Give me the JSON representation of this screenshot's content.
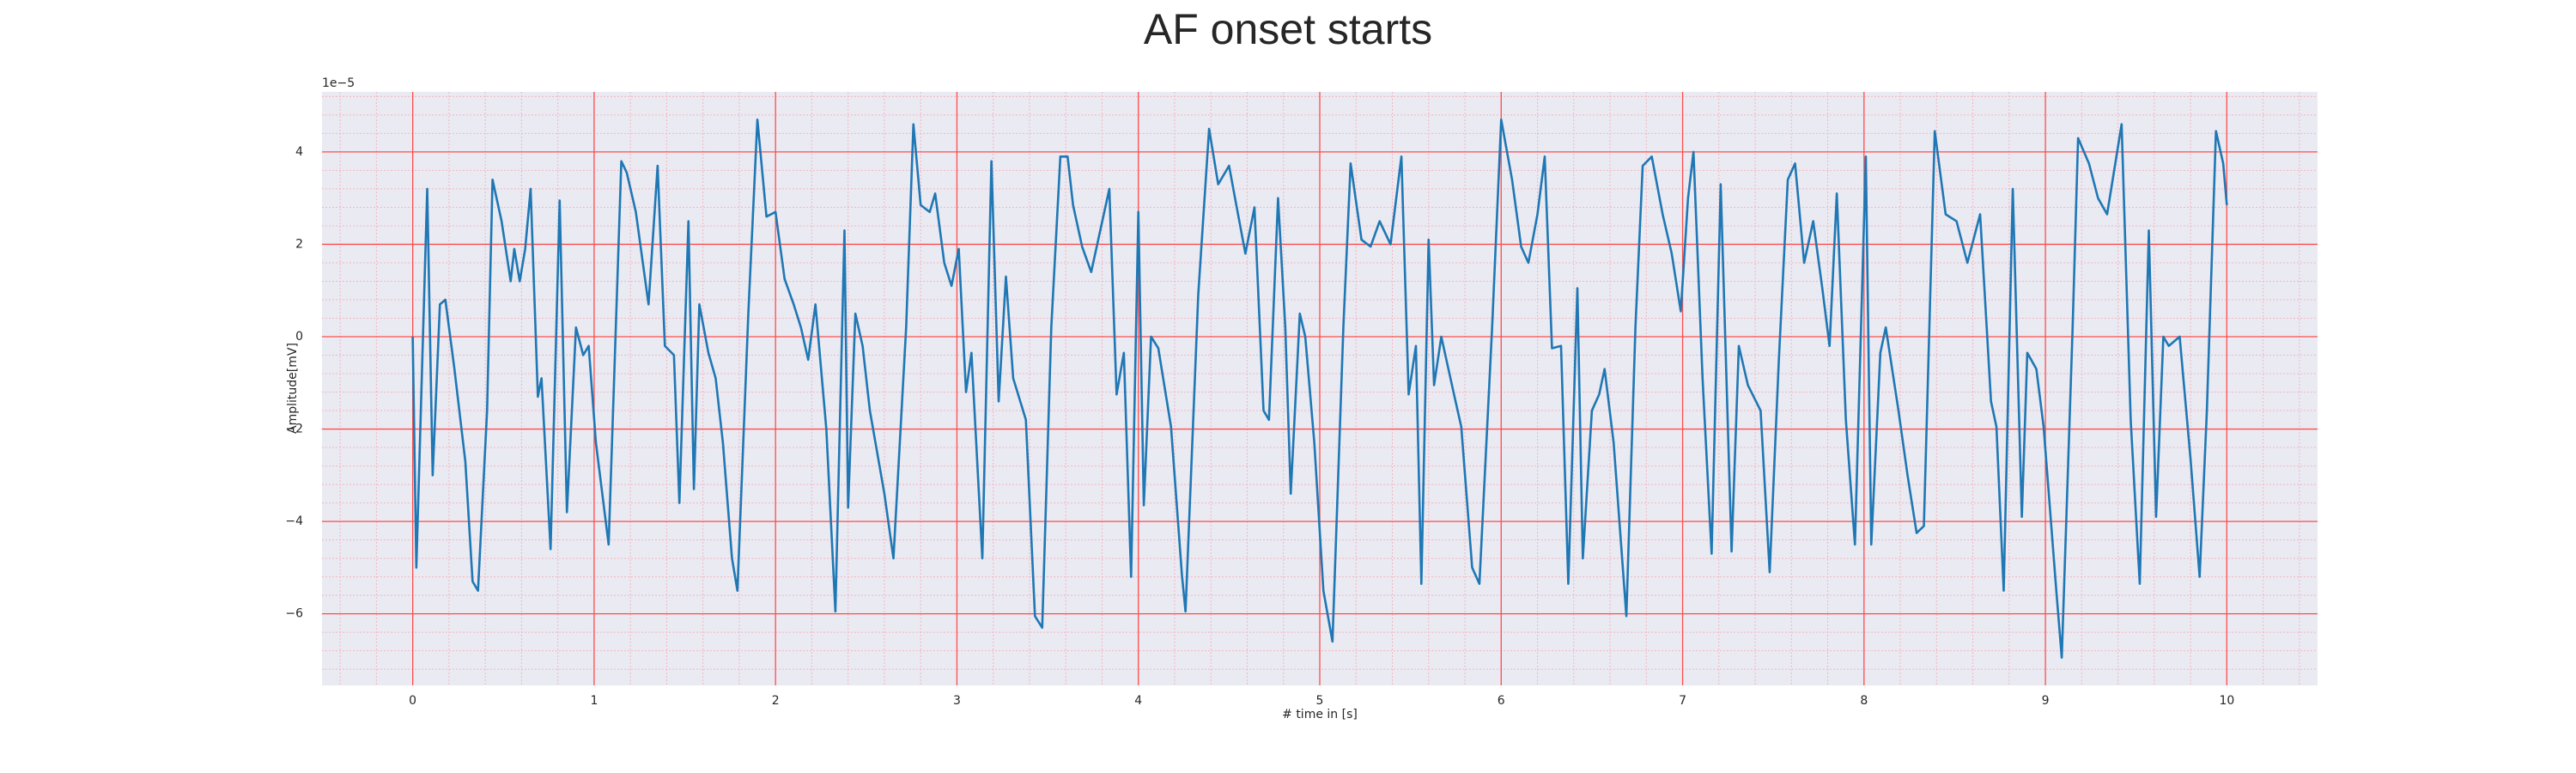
{
  "chart_data": {
    "type": "line",
    "title": "AF onset starts",
    "xlabel": "# time in [s]",
    "ylabel": "Amplitude[mV]",
    "y_offset_text": "1e−5",
    "color": "#1f77b4",
    "background": "#eaeaf2",
    "grid": true,
    "grid_color": "#ff4d4d",
    "minor_grid": true,
    "minor_grid_color": "#f5b5c0",
    "xlim": [
      -0.5,
      10.5
    ],
    "ylim": [
      -7.55,
      5.3
    ],
    "xticks": [
      0,
      1,
      2,
      3,
      4,
      5,
      6,
      7,
      8,
      9,
      10
    ],
    "yticks": [
      {
        "value": -6,
        "label": "−6"
      },
      {
        "value": -4,
        "label": "−4"
      },
      {
        "value": -2,
        "label": "−2"
      },
      0,
      2,
      4
    ],
    "x": [
      0,
      0.02,
      0.08,
      0.11,
      0.15,
      0.18,
      0.23,
      0.29,
      0.33,
      0.36,
      0.41,
      0.44,
      0.49,
      0.54,
      0.56,
      0.59,
      0.62,
      0.65,
      0.69,
      0.71,
      0.76,
      0.81,
      0.85,
      0.9,
      0.94,
      0.97,
      1.01,
      1.08,
      1.15,
      1.18,
      1.23,
      1.3,
      1.35,
      1.39,
      1.44,
      1.47,
      1.52,
      1.55,
      1.58,
      1.63,
      1.67,
      1.71,
      1.76,
      1.79,
      1.85,
      1.9,
      1.95,
      2.0,
      2.05,
      2.1,
      2.14,
      2.18,
      2.22,
      2.28,
      2.33,
      2.38,
      2.4,
      2.44,
      2.48,
      2.52,
      2.6,
      2.65,
      2.72,
      2.76,
      2.8,
      2.85,
      2.88,
      2.93,
      2.97,
      3.01,
      3.05,
      3.08,
      3.14,
      3.19,
      3.23,
      3.27,
      3.31,
      3.38,
      3.43,
      3.47,
      3.52,
      3.57,
      3.61,
      3.64,
      3.69,
      3.74,
      3.79,
      3.84,
      3.88,
      3.92,
      3.96,
      4.0,
      4.03,
      4.07,
      4.11,
      4.18,
      4.24,
      4.26,
      4.33,
      4.39,
      4.44,
      4.5,
      4.54,
      4.59,
      4.64,
      4.69,
      4.72,
      4.77,
      4.81,
      4.84,
      4.89,
      4.92,
      4.97,
      5.02,
      5.07,
      5.13,
      5.17,
      5.23,
      5.28,
      5.33,
      5.39,
      5.45,
      5.49,
      5.53,
      5.56,
      5.6,
      5.63,
      5.67,
      5.74,
      5.78,
      5.84,
      5.88,
      5.95,
      6.0,
      6.06,
      6.11,
      6.15,
      6.2,
      6.24,
      6.28,
      6.33,
      6.37,
      6.42,
      6.45,
      6.5,
      6.54,
      6.57,
      6.62,
      6.69,
      6.74,
      6.78,
      6.83,
      6.89,
      6.94,
      6.99,
      7.03,
      7.06,
      7.11,
      7.16,
      7.21,
      7.27,
      7.31,
      7.36,
      7.43,
      7.48,
      7.53,
      7.58,
      7.62,
      7.67,
      7.72,
      7.77,
      7.81,
      7.85,
      7.9,
      7.95,
      8.01,
      8.04,
      8.09,
      8.12,
      8.19,
      8.24,
      8.29,
      8.33,
      8.39,
      8.45,
      8.51,
      8.57,
      8.64,
      8.7,
      8.73,
      8.77,
      8.82,
      8.87,
      8.9,
      8.95,
      8.99,
      9.06,
      9.09,
      9.15,
      9.18,
      9.24,
      9.29,
      9.34,
      9.42,
      9.47,
      9.52,
      9.57,
      9.61,
      9.65,
      9.68,
      9.74,
      9.8,
      9.85,
      9.89,
      9.94,
      9.98,
      10.0
    ],
    "values": [
      0,
      -5.0,
      3.2,
      -3.0,
      0.7,
      0.8,
      -0.7,
      -2.7,
      -5.3,
      -5.5,
      -1.6,
      3.4,
      2.5,
      1.2,
      1.9,
      1.2,
      1.9,
      3.2,
      -1.3,
      -0.9,
      -4.6,
      2.95,
      -3.8,
      0.2,
      -0.4,
      -0.2,
      -2.3,
      -4.5,
      3.8,
      3.55,
      2.7,
      0.7,
      3.7,
      -0.2,
      -0.4,
      -3.6,
      2.5,
      -3.3,
      0.7,
      -0.35,
      -0.9,
      -2.3,
      -4.8,
      -5.5,
      0.5,
      4.7,
      2.6,
      2.7,
      1.25,
      0.7,
      0.2,
      -0.5,
      0.7,
      -2.0,
      -5.95,
      2.3,
      -3.7,
      0.5,
      -0.2,
      -1.6,
      -3.4,
      -4.8,
      0.2,
      4.6,
      2.85,
      2.7,
      3.1,
      1.6,
      1.1,
      1.9,
      -1.2,
      -0.35,
      -4.8,
      3.8,
      -1.4,
      1.3,
      -0.9,
      -1.8,
      -6.05,
      -6.3,
      0.2,
      3.9,
      3.9,
      2.85,
      1.95,
      1.4,
      2.3,
      3.2,
      -1.25,
      -0.35,
      -5.2,
      2.7,
      -3.65,
      0,
      -0.25,
      -1.95,
      -5.15,
      -5.95,
      0.9,
      4.5,
      3.3,
      3.7,
      2.85,
      1.8,
      2.8,
      -1.6,
      -1.8,
      3.0,
      0.2,
      -3.4,
      0.5,
      0,
      -2.3,
      -5.5,
      -6.6,
      0.2,
      3.75,
      2.1,
      1.95,
      2.5,
      2.0,
      3.9,
      -1.25,
      -0.2,
      -5.35,
      2.1,
      -1.05,
      0,
      -1.25,
      -1.95,
      -5.0,
      -5.35,
      0.2,
      4.7,
      3.4,
      1.95,
      1.6,
      2.65,
      3.9,
      -0.25,
      -0.2,
      -5.35,
      1.05,
      -4.8,
      -1.6,
      -1.25,
      -0.7,
      -2.3,
      -6.05,
      0.2,
      3.7,
      3.9,
      2.65,
      1.8,
      0.55,
      3.0,
      4.0,
      -0.9,
      -4.7,
      3.3,
      -4.65,
      -0.2,
      -1.05,
      -1.6,
      -5.1,
      -0.55,
      3.4,
      3.75,
      1.6,
      2.5,
      1.05,
      -0.2,
      3.1,
      -1.8,
      -4.5,
      3.9,
      -4.5,
      -0.35,
      0.2,
      -1.6,
      -3.0,
      -4.25,
      -4.1,
      4.45,
      2.65,
      2.5,
      1.6,
      2.65,
      -1.4,
      -1.95,
      -5.5,
      3.2,
      -3.9,
      -0.35,
      -0.7,
      -1.95,
      -5.5,
      -6.95,
      0.2,
      4.3,
      3.75,
      3.0,
      2.65,
      4.6,
      -1.8,
      -5.35,
      2.3,
      -3.9,
      0,
      -0.2,
      0,
      -2.65,
      -5.2,
      -1.6,
      4.45,
      3.75,
      2.85
    ]
  }
}
